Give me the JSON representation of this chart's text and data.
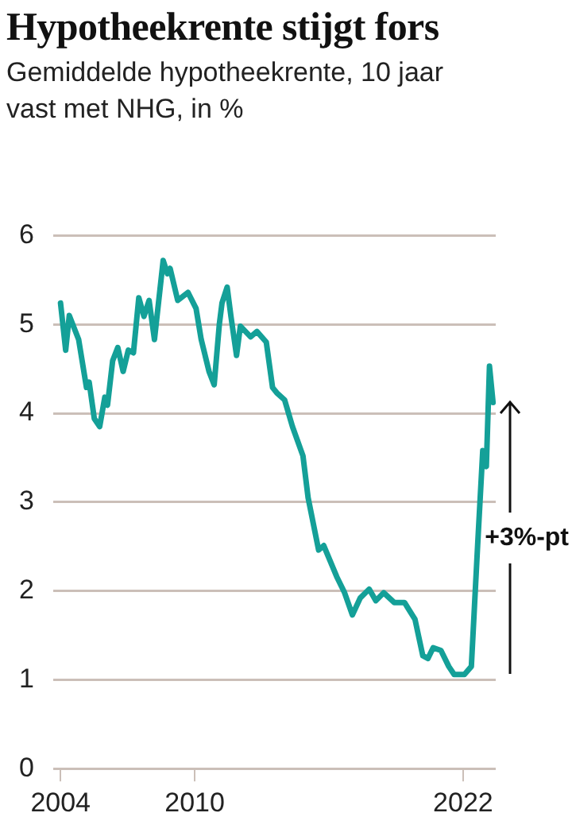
{
  "chart_data": {
    "type": "line",
    "title": "Hypotheekrente stijgt fors",
    "subtitle": "Gemiddelde hypotheekrente, 10 jaar vast met NHG, in %",
    "x": [
      2004.0,
      2004.23,
      2004.39,
      2004.81,
      2005.16,
      2005.28,
      2005.51,
      2005.75,
      2005.98,
      2006.1,
      2006.33,
      2006.56,
      2006.8,
      2007.03,
      2007.26,
      2007.5,
      2007.73,
      2007.96,
      2008.2,
      2008.59,
      2008.78,
      2008.9,
      2009.24,
      2009.7,
      2010.06,
      2010.29,
      2010.64,
      2010.87,
      2011.1,
      2011.22,
      2011.45,
      2011.62,
      2011.87,
      2012.04,
      2012.5,
      2012.78,
      2013.2,
      2013.48,
      2013.67,
      2014.02,
      2014.37,
      2014.84,
      2015.07,
      2015.54,
      2015.77,
      2016.35,
      2016.7,
      2017.05,
      2017.4,
      2017.8,
      2018.1,
      2018.45,
      2018.92,
      2019.38,
      2019.85,
      2020.2,
      2020.43,
      2020.66,
      2021.01,
      2021.36,
      2021.6,
      2022.06,
      2022.37,
      2022.65,
      2022.88,
      2023.04,
      2023.18,
      2023.34
    ],
    "series": [
      {
        "color": "#14a098",
        "values": [
          5.24,
          4.71,
          5.1,
          4.83,
          4.29,
          4.35,
          3.94,
          3.85,
          4.18,
          4.09,
          4.59,
          4.74,
          4.47,
          4.71,
          4.68,
          5.3,
          5.09,
          5.27,
          4.83,
          5.72,
          5.57,
          5.63,
          5.27,
          5.36,
          5.18,
          4.83,
          4.47,
          4.32,
          5.0,
          5.24,
          5.42,
          5.09,
          4.65,
          4.98,
          4.86,
          4.92,
          4.8,
          4.29,
          4.23,
          4.15,
          3.85,
          3.52,
          3.05,
          2.46,
          2.51,
          2.16,
          1.98,
          1.73,
          1.92,
          2.02,
          1.89,
          1.98,
          1.87,
          1.87,
          1.68,
          1.27,
          1.24,
          1.36,
          1.33,
          1.15,
          1.06,
          1.06,
          1.15,
          2.51,
          3.58,
          3.4,
          4.53,
          4.12
        ]
      }
    ],
    "xlim": [
      2003.67,
      2023.46
    ],
    "xticks": [
      2004,
      2010,
      2022
    ],
    "ylim": [
      0,
      6
    ],
    "yticks": [
      0,
      1,
      2,
      3,
      4,
      5,
      6
    ],
    "grid": "y",
    "marker": "none",
    "line_style": "solid",
    "annotations": [
      "+3%-pt"
    ]
  }
}
